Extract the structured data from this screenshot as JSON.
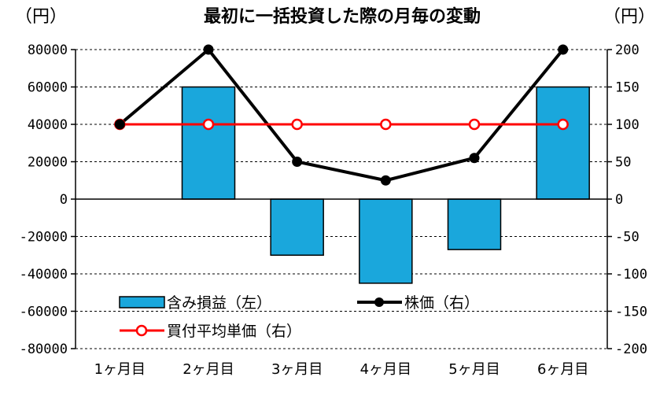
{
  "chart_data": {
    "type": "bar",
    "title": "最初に一括投資した際の月毎の変動",
    "left_axis_unit": "（円）",
    "right_axis_unit": "（円）",
    "categories": [
      "1ヶ月目",
      "2ヶ月目",
      "3ヶ月目",
      "4ヶ月目",
      "5ヶ月目",
      "6ヶ月目"
    ],
    "left_axis": {
      "ylim": [
        -80000,
        80000
      ],
      "ticks": [
        80000,
        60000,
        40000,
        20000,
        0,
        -20000,
        -40000,
        -60000,
        -80000
      ]
    },
    "right_axis": {
      "ylim": [
        -200,
        200
      ],
      "ticks": [
        200,
        150,
        100,
        50,
        0,
        -50,
        -100,
        -150,
        -200
      ]
    },
    "grid": "dashed horizontal",
    "legend_position": "bottom-left inside plot",
    "series": [
      {
        "name": "含み損益（左）",
        "kind": "bar",
        "axis": "left",
        "color": "#1aa7dc",
        "values": [
          0,
          60000,
          -30000,
          -45000,
          -27000,
          60000
        ]
      },
      {
        "name": "株価（右）",
        "kind": "line",
        "axis": "right",
        "color": "#000000",
        "marker": "filled-circle",
        "values": [
          100,
          200,
          50,
          25,
          55,
          200
        ]
      },
      {
        "name": "買付平均単価（右）",
        "kind": "line",
        "axis": "right",
        "color": "#ff0000",
        "marker": "open-circle",
        "values": [
          100,
          100,
          100,
          100,
          100,
          100
        ]
      }
    ]
  }
}
